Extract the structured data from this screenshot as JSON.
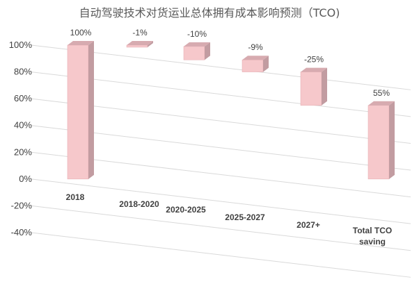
{
  "chart_data": {
    "type": "bar",
    "title": "自动驾驶技术对货运业总体拥有成本影响预测（TCO)",
    "categories": [
      "2018",
      "2018-2020",
      "2020-2025",
      "2025-2027",
      "2027+",
      "Total TCO saving"
    ],
    "values": [
      100,
      -1,
      -10,
      -9,
      -25,
      55
    ],
    "data_labels": [
      "100%",
      "-1%",
      "-10%",
      "-9%",
      "-25%",
      "55%"
    ],
    "bar_ranges": [
      [
        0,
        100
      ],
      [
        99,
        100
      ],
      [
        89,
        99
      ],
      [
        80,
        89
      ],
      [
        55,
        80
      ],
      [
        0,
        55
      ]
    ],
    "y_ticks": [
      "100%",
      "80%",
      "60%",
      "40%",
      "20%",
      "0%",
      "-20%",
      "-40%"
    ],
    "ylim": [
      -40,
      100
    ],
    "xlabel": "",
    "ylabel": "",
    "grid": true,
    "legend": "none",
    "colors": {
      "bar_front": "#f6c8cb",
      "bar_side": "#c29ca1",
      "bar_top": "#d7abb0",
      "grid": "#d9d9d9"
    }
  }
}
